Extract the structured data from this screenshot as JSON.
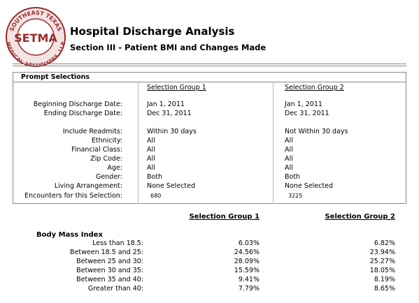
{
  "logo": {
    "top": "SOUTHEAST TEXAS",
    "center": "SETMA",
    "bottom": "MEDICAL ASSOCIATES, LLP"
  },
  "header": {
    "title": "Hospital Discharge Analysis",
    "subtitle": "Section III - Patient BMI and Changes Made"
  },
  "prompt": {
    "title": "Prompt Selections",
    "groups": [
      "Selection Group 1",
      "Selection Group 2"
    ],
    "rows": [
      {
        "label": "Beginning Discharge Date:",
        "values": [
          "Jan 1, 2011",
          "Jan 1, 2011"
        ]
      },
      {
        "label": "Ending Discharge Date:",
        "values": [
          "Dec 31, 2011",
          "Dec 31, 2011"
        ]
      },
      {
        "label": "Include Readmits:",
        "values": [
          "Within 30 days",
          "Not Within 30 days"
        ]
      },
      {
        "label": "Ethnicity:",
        "values": [
          "All",
          "All"
        ]
      },
      {
        "label": "Financial Class:",
        "values": [
          "All",
          "All"
        ]
      },
      {
        "label": "Zip Code:",
        "values": [
          "All",
          "All"
        ]
      },
      {
        "label": "Age:",
        "values": [
          "All",
          "All"
        ]
      },
      {
        "label": "Gender:",
        "values": [
          "Both",
          "Both"
        ]
      },
      {
        "label": "Living Arrangement:",
        "values": [
          "None Selected",
          "None Selected"
        ]
      },
      {
        "label": "Encounters for this Selection:",
        "values": [
          "680",
          "3225"
        ]
      }
    ]
  },
  "bmi": {
    "columns": [
      "Selection Group 1",
      "Selection Group 2"
    ],
    "section": "Body Mass Index",
    "rows": [
      {
        "label": "Less than 18.5:",
        "values": [
          "6.03%",
          "6.82%"
        ]
      },
      {
        "label": "Between 18.5 and 25:",
        "values": [
          "24.56%",
          "23.94%"
        ]
      },
      {
        "label": "Between 25 and 30:",
        "values": [
          "28.09%",
          "25.27%"
        ]
      },
      {
        "label": "Between 30 and 35:",
        "values": [
          "15.59%",
          "18.05%"
        ]
      },
      {
        "label": "Between 35 and 40:",
        "values": [
          "9.41%",
          "8.19%"
        ]
      },
      {
        "label": "Greater than 40:",
        "values": [
          "7.79%",
          "8.65%"
        ]
      }
    ]
  }
}
